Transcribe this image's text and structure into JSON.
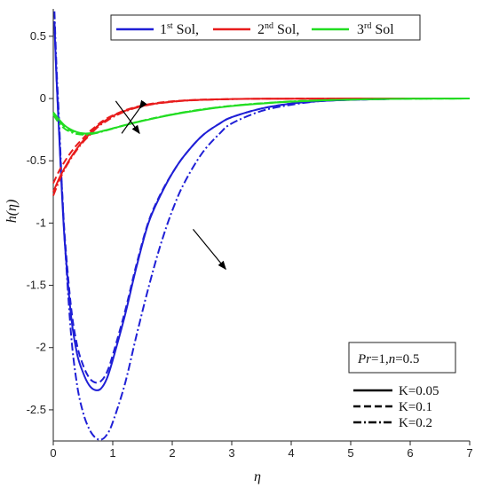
{
  "chart_data": {
    "type": "line",
    "title": "",
    "xlabel": "η",
    "ylabel": "h(η)",
    "xlim": [
      0,
      7
    ],
    "ylim": [
      -2.75,
      0.72
    ],
    "x_ticks": [
      0,
      1,
      2,
      3,
      4,
      5,
      6,
      7
    ],
    "y_ticks": [
      0.5,
      0,
      -0.5,
      -1,
      -1.5,
      -2,
      -2.5
    ],
    "y_tick_labels": [
      "0.5",
      "0",
      "-0.5",
      "-1",
      "-1.5",
      "-2",
      "-2.5"
    ],
    "grid": false,
    "solution_legend": [
      {
        "base": "1",
        "sup": "st",
        "rest": " Sol,",
        "color": "#1f1fd6"
      },
      {
        "base": "2",
        "sup": "nd",
        "rest": " Sol,",
        "color": "#e81c1c"
      },
      {
        "base": "3",
        "sup": "rd",
        "rest": " Sol",
        "color": "#22dd22"
      }
    ],
    "param_box": {
      "pr": "Pr",
      "eq1": "=1,",
      "n": "n",
      "eq2": "=0.5"
    },
    "line_style_legend": [
      {
        "label": "K=0.05",
        "dash": "solid"
      },
      {
        "label": "K=0.1",
        "dash": "dash"
      },
      {
        "label": "K=0.2",
        "dash": "dashdot"
      }
    ],
    "series": [
      {
        "solution": "1st",
        "K": "0.05",
        "color": "#1f1fd6",
        "dash": "solid",
        "x": [
          0.02,
          0.05,
          0.1,
          0.15,
          0.2,
          0.3,
          0.4,
          0.5,
          0.6,
          0.7,
          0.8,
          0.9,
          1.0,
          1.2,
          1.4,
          1.6,
          1.8,
          2.0,
          2.2,
          2.5,
          2.8,
          3.0,
          3.5,
          4.0,
          4.5,
          5.0,
          5.5,
          6.0,
          6.5,
          7.0
        ],
        "y": [
          0.6,
          0.2,
          -0.3,
          -0.8,
          -1.2,
          -1.75,
          -2.05,
          -2.2,
          -2.3,
          -2.34,
          -2.33,
          -2.25,
          -2.1,
          -1.75,
          -1.35,
          -1.0,
          -0.78,
          -0.6,
          -0.46,
          -0.3,
          -0.2,
          -0.15,
          -0.08,
          -0.04,
          -0.02,
          -0.01,
          -0.005,
          0,
          0,
          0
        ]
      },
      {
        "solution": "1st",
        "K": "0.1",
        "color": "#1f1fd6",
        "dash": "dash",
        "x": [
          0.02,
          0.05,
          0.1,
          0.15,
          0.2,
          0.3,
          0.4,
          0.5,
          0.6,
          0.7,
          0.8,
          0.9,
          1.0,
          1.2,
          1.4,
          1.6,
          1.8,
          2.0,
          2.2,
          2.5,
          2.8,
          3.0,
          3.5,
          4.0,
          4.5,
          5.0,
          5.5,
          6.0,
          6.5,
          7.0
        ],
        "y": [
          0.62,
          0.22,
          -0.28,
          -0.75,
          -1.15,
          -1.68,
          -1.98,
          -2.14,
          -2.24,
          -2.28,
          -2.27,
          -2.2,
          -2.06,
          -1.72,
          -1.33,
          -0.99,
          -0.77,
          -0.6,
          -0.46,
          -0.3,
          -0.2,
          -0.15,
          -0.08,
          -0.04,
          -0.02,
          -0.01,
          -0.005,
          0,
          0,
          0
        ]
      },
      {
        "solution": "1st",
        "K": "0.2",
        "color": "#1f1fd6",
        "dash": "dashdot",
        "x": [
          0.02,
          0.05,
          0.1,
          0.15,
          0.2,
          0.3,
          0.4,
          0.5,
          0.6,
          0.7,
          0.8,
          0.9,
          1.0,
          1.2,
          1.4,
          1.6,
          1.8,
          2.0,
          2.2,
          2.5,
          2.8,
          3.0,
          3.5,
          4.0,
          4.5,
          5.0,
          5.5,
          6.0,
          6.5,
          7.0
        ],
        "y": [
          0.7,
          0.3,
          -0.2,
          -0.75,
          -1.2,
          -1.9,
          -2.3,
          -2.52,
          -2.65,
          -2.72,
          -2.74,
          -2.7,
          -2.6,
          -2.3,
          -1.9,
          -1.52,
          -1.18,
          -0.9,
          -0.68,
          -0.44,
          -0.28,
          -0.2,
          -0.1,
          -0.05,
          -0.02,
          -0.01,
          -0.005,
          0,
          0,
          0
        ]
      },
      {
        "solution": "2nd",
        "K": "0.05",
        "color": "#e81c1c",
        "dash": "solid",
        "x": [
          0,
          0.1,
          0.2,
          0.3,
          0.4,
          0.5,
          0.6,
          0.7,
          0.8,
          0.9,
          1.0,
          1.2,
          1.4,
          1.6,
          1.8,
          2.0,
          2.2,
          2.5,
          3.0,
          3.5,
          4.0,
          5.0,
          6.0,
          7.0
        ],
        "y": [
          -0.75,
          -0.64,
          -0.55,
          -0.47,
          -0.4,
          -0.34,
          -0.29,
          -0.24,
          -0.2,
          -0.17,
          -0.14,
          -0.1,
          -0.07,
          -0.05,
          -0.035,
          -0.025,
          -0.017,
          -0.01,
          -0.004,
          -0.002,
          -0.001,
          0,
          0,
          0
        ]
      },
      {
        "solution": "2nd",
        "K": "0.1",
        "color": "#e81c1c",
        "dash": "dash",
        "x": [
          0,
          0.1,
          0.2,
          0.3,
          0.4,
          0.5,
          0.6,
          0.7,
          0.8,
          0.9,
          1.0,
          1.2,
          1.4,
          1.6,
          1.8,
          2.0,
          2.2,
          2.5,
          3.0,
          3.5,
          4.0,
          5.0,
          6.0,
          7.0
        ],
        "y": [
          -0.68,
          -0.58,
          -0.5,
          -0.43,
          -0.37,
          -0.32,
          -0.27,
          -0.23,
          -0.19,
          -0.16,
          -0.135,
          -0.095,
          -0.066,
          -0.046,
          -0.032,
          -0.022,
          -0.015,
          -0.009,
          -0.004,
          -0.002,
          -0.001,
          0,
          0,
          0
        ]
      },
      {
        "solution": "2nd",
        "K": "0.2",
        "color": "#e81c1c",
        "dash": "dashdot",
        "x": [
          0,
          0.1,
          0.2,
          0.3,
          0.4,
          0.5,
          0.6,
          0.7,
          0.8,
          0.9,
          1.0,
          1.2,
          1.4,
          1.6,
          1.8,
          2.0,
          2.2,
          2.5,
          3.0,
          3.5,
          4.0,
          5.0,
          6.0,
          7.0
        ],
        "y": [
          -0.78,
          -0.66,
          -0.56,
          -0.48,
          -0.41,
          -0.35,
          -0.3,
          -0.25,
          -0.21,
          -0.18,
          -0.15,
          -0.105,
          -0.073,
          -0.052,
          -0.037,
          -0.026,
          -0.018,
          -0.011,
          -0.005,
          -0.002,
          -0.001,
          0,
          0,
          0
        ]
      },
      {
        "solution": "3rd",
        "K": "0.05",
        "color": "#22dd22",
        "dash": "solid",
        "x": [
          0,
          0.1,
          0.2,
          0.3,
          0.4,
          0.5,
          0.6,
          0.7,
          0.8,
          1.0,
          1.2,
          1.5,
          2.0,
          2.5,
          3.0,
          3.5,
          4.0,
          4.5,
          5.0,
          5.5,
          6.0,
          7.0
        ],
        "y": [
          -0.11,
          -0.17,
          -0.22,
          -0.25,
          -0.27,
          -0.28,
          -0.28,
          -0.275,
          -0.265,
          -0.24,
          -0.215,
          -0.18,
          -0.13,
          -0.09,
          -0.06,
          -0.04,
          -0.025,
          -0.015,
          -0.008,
          -0.004,
          -0.002,
          0
        ]
      },
      {
        "solution": "3rd",
        "K": "0.1",
        "color": "#22dd22",
        "dash": "dash",
        "x": [
          0,
          0.1,
          0.2,
          0.3,
          0.4,
          0.5,
          0.6,
          0.7,
          0.8,
          1.0,
          1.2,
          1.5,
          2.0,
          2.5,
          3.0,
          3.5,
          4.0,
          4.5,
          5.0,
          5.5,
          6.0,
          7.0
        ],
        "y": [
          -0.12,
          -0.18,
          -0.23,
          -0.26,
          -0.275,
          -0.283,
          -0.282,
          -0.276,
          -0.265,
          -0.24,
          -0.214,
          -0.178,
          -0.128,
          -0.088,
          -0.059,
          -0.039,
          -0.024,
          -0.014,
          -0.008,
          -0.004,
          -0.002,
          0
        ]
      },
      {
        "solution": "3rd",
        "K": "0.2",
        "color": "#22dd22",
        "dash": "dashdot",
        "x": [
          0,
          0.1,
          0.2,
          0.3,
          0.4,
          0.5,
          0.6,
          0.7,
          0.8,
          1.0,
          1.2,
          1.5,
          2.0,
          2.5,
          3.0,
          3.5,
          4.0,
          4.5,
          5.0,
          5.5,
          6.0,
          7.0
        ],
        "y": [
          -0.13,
          -0.2,
          -0.245,
          -0.27,
          -0.285,
          -0.29,
          -0.288,
          -0.28,
          -0.268,
          -0.242,
          -0.215,
          -0.178,
          -0.127,
          -0.087,
          -0.058,
          -0.038,
          -0.023,
          -0.014,
          -0.008,
          -0.004,
          -0.002,
          0
        ]
      }
    ],
    "arrows": [
      {
        "description": "2nd solution trend",
        "from": [
          1.05,
          -0.02
        ],
        "to": [
          1.45,
          -0.28
        ]
      },
      {
        "description": "3rd solution trend",
        "from": [
          1.45,
          -0.08
        ],
        "to": [
          1.15,
          -0.28
        ],
        "reversed": true
      },
      {
        "description": "1st solution trend",
        "from": [
          2.35,
          -1.05
        ],
        "to": [
          2.9,
          -1.37
        ]
      }
    ]
  }
}
